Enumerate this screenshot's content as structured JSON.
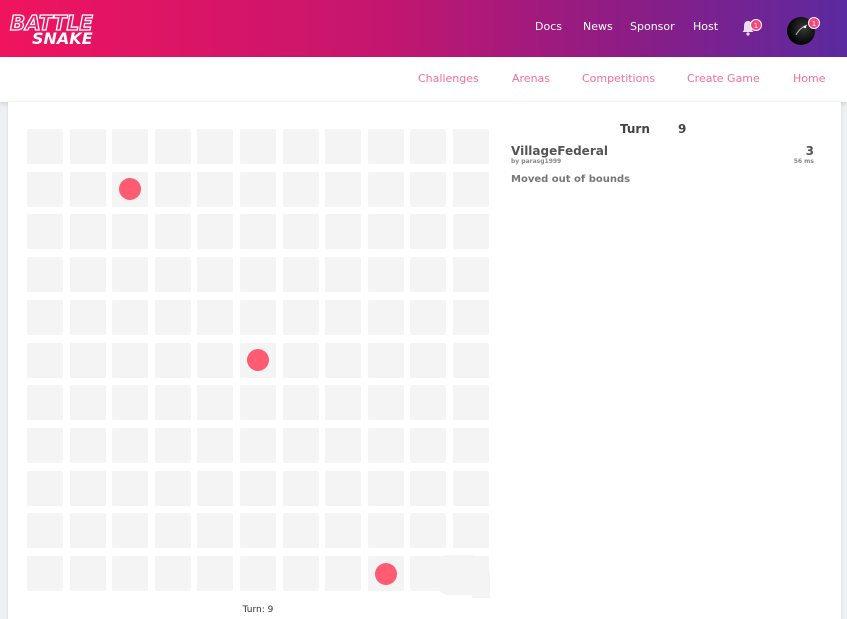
{
  "brand": {
    "logo_text": "BATTLESNAKE"
  },
  "topnav": {
    "items": [
      "Docs",
      "News",
      "Sponsor",
      "Host"
    ]
  },
  "notifications": {
    "count": "1"
  },
  "profile": {
    "count": "1"
  },
  "subnav": {
    "items": [
      "Challenges",
      "Arenas",
      "Competitions",
      "Create Game",
      "Home"
    ]
  },
  "game": {
    "turn_label": "Turn",
    "turn": "9",
    "turn_caption": "Turn: 9",
    "board": {
      "columns": 11,
      "rows": 11
    },
    "food": [
      {
        "x": 2,
        "y": 1
      },
      {
        "x": 5,
        "y": 5
      },
      {
        "x": 8,
        "y": 10
      }
    ],
    "snake_head": {
      "x": 10,
      "y": 10,
      "direction": "left"
    }
  },
  "snakes": [
    {
      "name": "VillageFederal",
      "author": "by parasg1999",
      "length": "3",
      "latency": "56 ms",
      "status": "Moved out of bounds"
    }
  ],
  "colors": {
    "food": "#ff5b72",
    "snake": "#f4f4f4",
    "cell": "#f4f4f4",
    "accent": "#f0145e"
  }
}
